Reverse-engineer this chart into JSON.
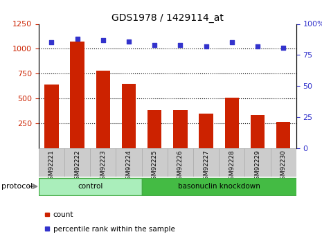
{
  "title": "GDS1978 / 1429114_at",
  "samples": [
    "GSM92221",
    "GSM92222",
    "GSM92223",
    "GSM92224",
    "GSM92225",
    "GSM92226",
    "GSM92227",
    "GSM92228",
    "GSM92229",
    "GSM92230"
  ],
  "counts": [
    640,
    1070,
    780,
    650,
    380,
    385,
    350,
    510,
    335,
    265
  ],
  "percentiles": [
    85,
    88,
    87,
    86,
    83,
    83,
    82,
    85,
    82,
    81
  ],
  "groups": [
    {
      "label": "control",
      "spans": [
        0,
        3
      ]
    },
    {
      "label": "basonuclin knockdown",
      "spans": [
        4,
        9
      ]
    }
  ],
  "ylim_left": [
    0,
    1250
  ],
  "ylim_right": [
    0,
    100
  ],
  "yticks_left": [
    250,
    500,
    750,
    1000,
    1250
  ],
  "yticks_right": [
    0,
    25,
    50,
    75,
    100
  ],
  "grid_yticks": [
    250,
    500,
    750,
    1000
  ],
  "bar_color": "#cc2200",
  "dot_color": "#3333cc",
  "bar_width": 0.55,
  "group_bg_light": "#aaeebb",
  "group_bg_dark": "#44bb44",
  "group_border": "#44aa44",
  "xtick_bg": "#cccccc",
  "xtick_border": "#aaaaaa",
  "legend_items": [
    {
      "label": "count",
      "color": "#cc2200"
    },
    {
      "label": "percentile rank within the sample",
      "color": "#3333cc"
    }
  ]
}
